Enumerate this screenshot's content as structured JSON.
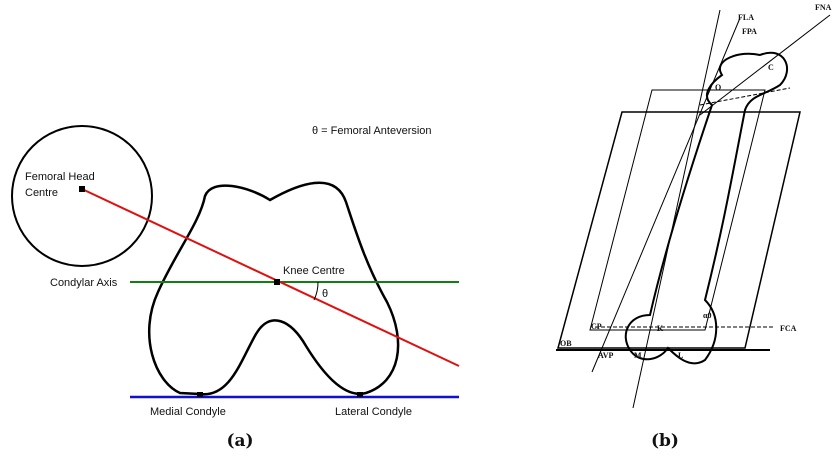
{
  "panel_a": {
    "caption": "(a)",
    "legend": "θ = Femoral Anteversion",
    "femoral_head_label": [
      "Femoral Head",
      "Centre"
    ],
    "condylar_axis_label": "Condylar Axis",
    "knee_centre_label": "Knee Centre",
    "angle_label": "θ",
    "medial_label": "Medial Condyle",
    "lateral_label": "Lateral Condyle"
  },
  "panel_b": {
    "caption": "(b)",
    "labels": [
      "FLA",
      "FPA",
      "FNA",
      "C",
      "O",
      "CP",
      "OB",
      "AVP",
      "M",
      "K",
      "L",
      "FCA",
      "α0"
    ]
  }
}
